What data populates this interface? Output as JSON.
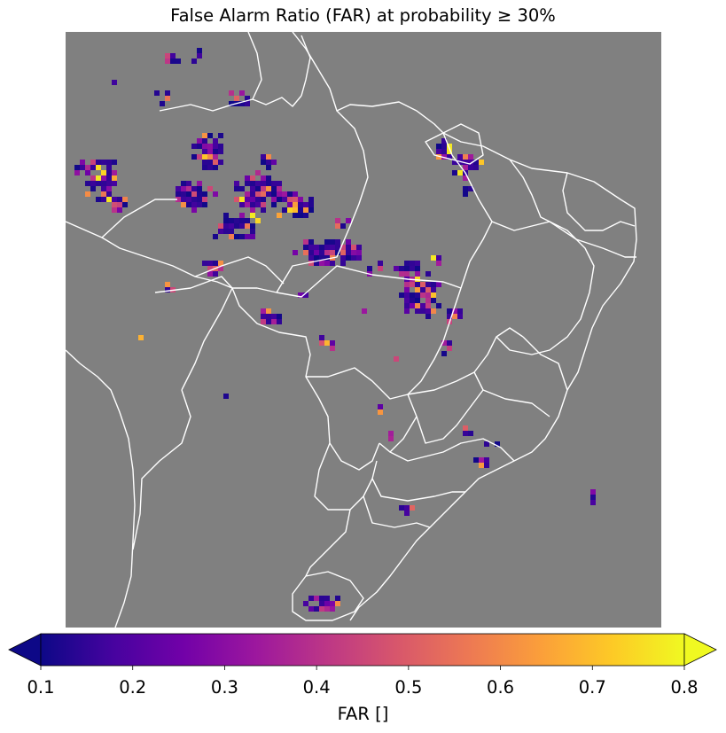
{
  "title": "False Alarm Ratio (FAR) at probability ≥ 30%",
  "map": {
    "background_color": "#808080",
    "border_color": "#ffffff",
    "colormap": "plasma"
  },
  "colorbar": {
    "label": "FAR []",
    "min": 0.1,
    "max": 0.8,
    "extend": "both",
    "ticks": [
      "0.1",
      "0.2",
      "0.3",
      "0.4",
      "0.5",
      "0.6",
      "0.7",
      "0.8"
    ],
    "colors": [
      "#0d0887",
      "#46039f",
      "#7201a8",
      "#9c179e",
      "#bd3786",
      "#d8576b",
      "#ed7953",
      "#fb9f3a",
      "#fdca26",
      "#f0f921"
    ]
  }
}
